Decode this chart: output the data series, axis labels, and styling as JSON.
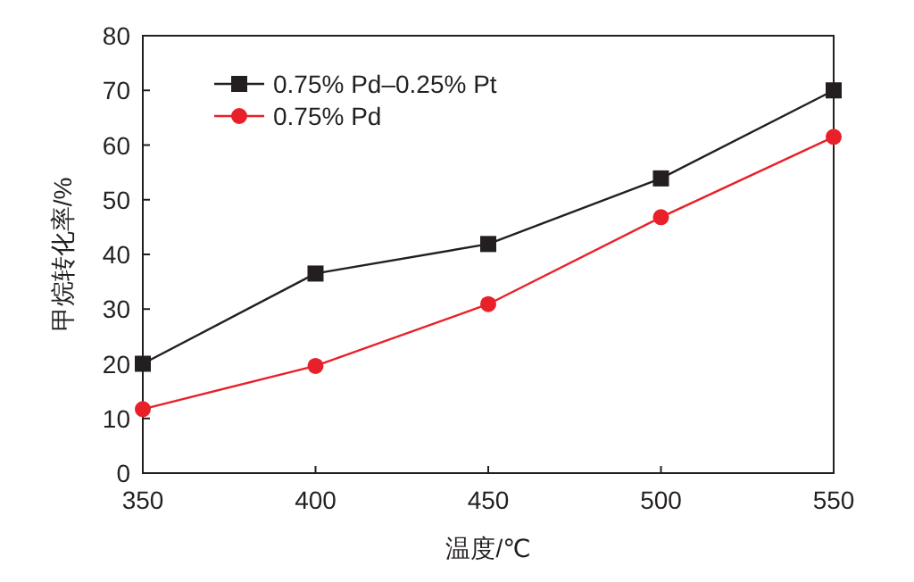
{
  "chart_data": {
    "type": "line",
    "xlabel": "温度/℃",
    "ylabel": "甲烷转化率/%",
    "x": [
      350,
      400,
      450,
      500,
      550
    ],
    "xlim": [
      350,
      550
    ],
    "xticks": [
      350,
      400,
      450,
      500,
      550
    ],
    "ylim": [
      0,
      80
    ],
    "yticks": [
      0,
      10,
      20,
      30,
      40,
      50,
      60,
      70,
      80
    ],
    "legend": "top left",
    "series": [
      {
        "name": "0.75% Pd–0.25% Pt",
        "color": "#231f20",
        "marker": "square",
        "values": [
          20,
          36.5,
          41.9,
          53.9,
          70
        ]
      },
      {
        "name": "0.75% Pd",
        "color": "#e8202a",
        "marker": "circle",
        "values": [
          11.7,
          19.6,
          30.9,
          46.8,
          61.5
        ]
      }
    ]
  }
}
